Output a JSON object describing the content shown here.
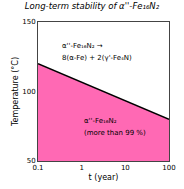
{
  "chart_data": {
    "type": "area",
    "title": "Long-term stability of α''-Fe₁₆N₂",
    "x_label": "t (year)",
    "y_label": "Temperature (°C)",
    "x": [
      0.1,
      100
    ],
    "series": [
      {
        "type": "area",
        "color": "#FF69B4",
        "values": [
          120,
          80
        ]
      },
      {
        "type": "line",
        "color": "#000000",
        "values": [
          120,
          80
        ]
      }
    ],
    "annotations": [
      "α''-Fe₁₆N₂ →",
      "8(α-Fe) + 2(γ'-Fe₄N)",
      "α''-Fe₁₆N₂",
      "(more than 99 %)"
    ],
    "log": "x",
    "xlim": [
      0.1,
      100
    ],
    "ylim": [
      50,
      150
    ],
    "xticks": [
      0.1,
      1,
      10,
      100
    ],
    "yticks": [
      50,
      100,
      150
    ],
    "grid": false
  }
}
